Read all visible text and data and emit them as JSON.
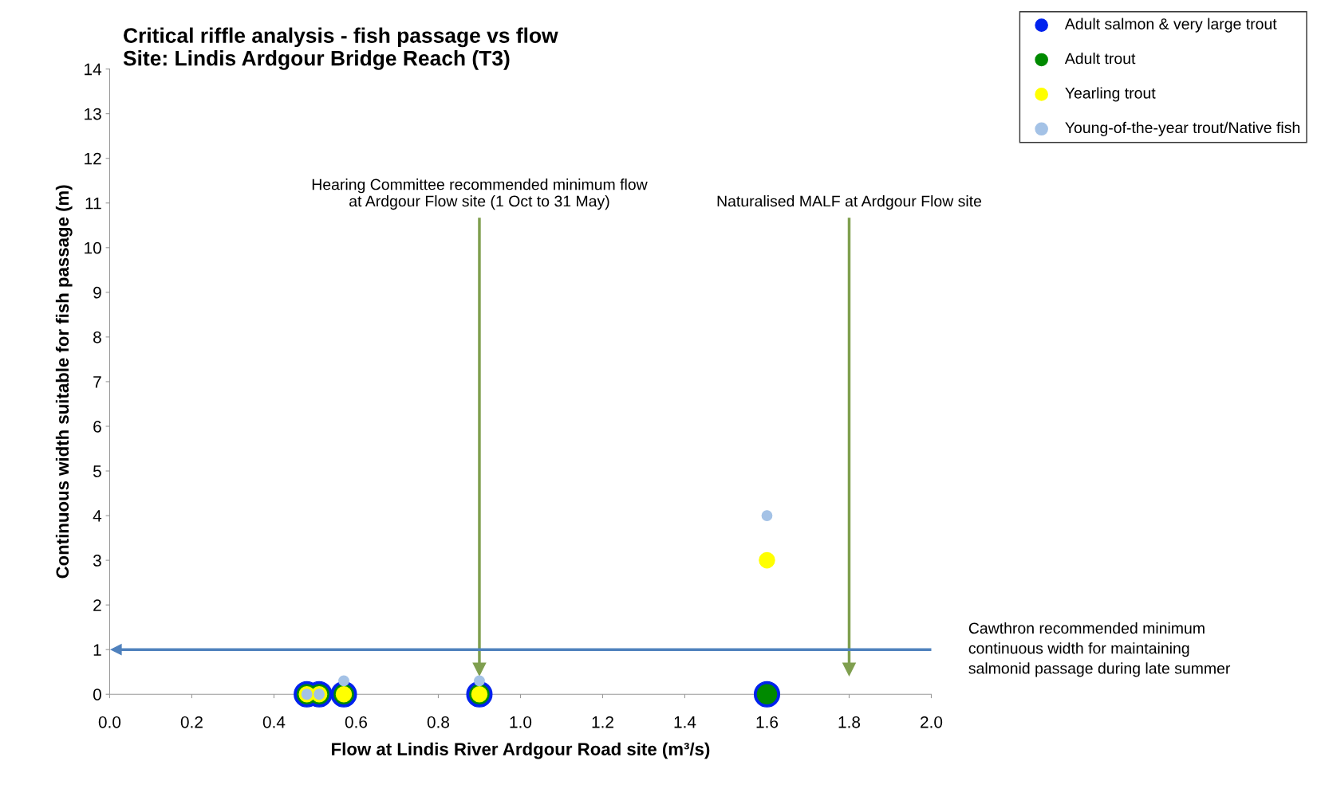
{
  "chart_data": {
    "type": "scatter",
    "title": "Critical riffle analysis - fish passage vs flow\nSite: Lindis Ardgour Bridge Reach (T3)",
    "xlabel": "Flow at Lindis River Ardgour Road site (m³/s)",
    "ylabel": "Continuous width suitable for fish passage (m)",
    "x": [
      0.48,
      0.51,
      0.57,
      0.9,
      1.6
    ],
    "series": [
      {
        "name": "Adult salmon & very large trout",
        "color": "#0022ee",
        "values": [
          0,
          0,
          0,
          0,
          0
        ]
      },
      {
        "name": "Adult trout",
        "color": "#008a00",
        "values": [
          0,
          0,
          0,
          0,
          0
        ]
      },
      {
        "name": "Yearling trout",
        "color": "#ffff00",
        "values": [
          0,
          0,
          0,
          0,
          3
        ]
      },
      {
        "name": "Young-of-the-year trout/Native fish",
        "color": "#a4c2e6",
        "values": [
          0,
          0,
          0.3,
          0.3,
          4
        ]
      }
    ],
    "xlim": [
      0,
      2
    ],
    "ylim": [
      0,
      14
    ],
    "xticks": [
      {
        "value": 0,
        "label": "0.0"
      },
      {
        "value": 0.2,
        "label": "0.2"
      },
      {
        "value": 0.4,
        "label": "0.4"
      },
      {
        "value": 0.6,
        "label": "0.6"
      },
      {
        "value": 0.8,
        "label": "0.8"
      },
      {
        "value": 1,
        "label": "1.0"
      },
      {
        "value": 1.2,
        "label": "1.2"
      },
      {
        "value": 1.4,
        "label": "1.4"
      },
      {
        "value": 1.6,
        "label": "1.6"
      },
      {
        "value": 1.8,
        "label": "1.8"
      },
      {
        "value": 2,
        "label": "2.0"
      }
    ],
    "yticks": [
      0,
      1,
      2,
      3,
      4,
      5,
      6,
      7,
      8,
      9,
      10,
      11,
      12,
      13,
      14
    ],
    "ref_lines": [
      {
        "axis": "x",
        "value": 0.9,
        "label": "Hearing Committee recommended minimum flow\nat Ardgour Flow site (1 Oct to 31 May)",
        "color": "#7f9f4f"
      },
      {
        "axis": "x",
        "value": 1.8,
        "label": "Naturalised MALF at Ardgour Flow site",
        "color": "#7f9f4f"
      },
      {
        "axis": "y",
        "value": 1,
        "label": "Cawthron recommended minimum\ncontinuous width for maintaining\nsalmonid passage during late summer",
        "color": "#4f81bd"
      }
    ],
    "grid": false,
    "legend": "top right",
    "marker": "circle"
  }
}
